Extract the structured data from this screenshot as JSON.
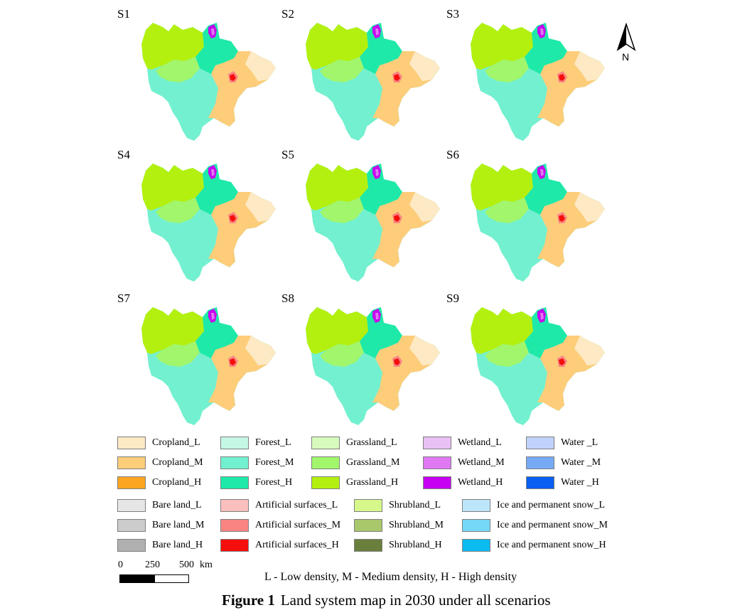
{
  "panels": [
    {
      "label": "S1"
    },
    {
      "label": "S2"
    },
    {
      "label": "S3"
    },
    {
      "label": "S4"
    },
    {
      "label": "S5"
    },
    {
      "label": "S6"
    },
    {
      "label": "S7"
    },
    {
      "label": "S8"
    },
    {
      "label": "S9"
    }
  ],
  "north_arrow": {
    "letter": "N"
  },
  "legend": [
    {
      "label": "Cropland_L",
      "color": "#fde9c4"
    },
    {
      "label": "Forest_L",
      "color": "#c5f7e4"
    },
    {
      "label": "Grassland_L",
      "color": "#d7fbbd"
    },
    {
      "label": "Wetland_L",
      "color": "#e8c0f4"
    },
    {
      "label": "Water _L",
      "color": "#c0d2fa"
    },
    {
      "label": "Cropland_M",
      "color": "#fdcd7a"
    },
    {
      "label": "Forest_M",
      "color": "#73f0cf"
    },
    {
      "label": "Grassland_M",
      "color": "#a2f66c"
    },
    {
      "label": "Wetland_M",
      "color": "#df78f2"
    },
    {
      "label": "Water _M",
      "color": "#76aaf4"
    },
    {
      "label": "Cropland_H",
      "color": "#fba520"
    },
    {
      "label": "Forest_H",
      "color": "#1ee9a8"
    },
    {
      "label": "Grassland_H",
      "color": "#b4f00f"
    },
    {
      "label": "Wetland_H",
      "color": "#c700f1"
    },
    {
      "label": "Water _H",
      "color": "#0a5ef2"
    },
    {
      "label": "Bare land_L",
      "color": "#e6e6e6"
    },
    {
      "label": "Artificial surfaces_L",
      "color": "#fbbfbd"
    },
    {
      "label": "Shrubland_L",
      "color": "#d6f88a"
    },
    {
      "label": "Ice and permanent snow_L",
      "color": "#bde6fb"
    },
    {
      "label": "Bare land_M",
      "color": "#cccccc"
    },
    {
      "label": "Artificial surfaces_M",
      "color": "#f98582"
    },
    {
      "label": "Shrubland_M",
      "color": "#a9c86c"
    },
    {
      "label": "Ice and permanent snow_M",
      "color": "#75d8f6"
    },
    {
      "label": "Bare land_H",
      "color": "#b0b0b0"
    },
    {
      "label": "Artificial surfaces_H",
      "color": "#f50f0c"
    },
    {
      "label": "Shrubland_H",
      "color": "#6a7f3c"
    },
    {
      "label": "Ice and permanent snow_H",
      "color": "#0cbbf0"
    }
  ],
  "scale": {
    "t0": "0",
    "t1": "250",
    "t2": "500",
    "unit": "km"
  },
  "density_note": "L - Low density, M - Medium density, H - High density",
  "caption": {
    "number": "Figure 1",
    "text": "Land system map in 2030 under all scenarios"
  }
}
